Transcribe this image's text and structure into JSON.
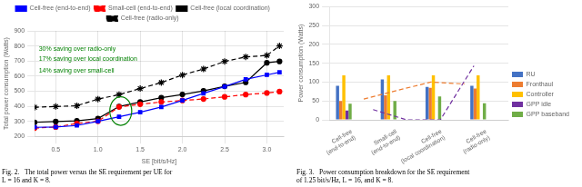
{
  "chart_data": [
    {
      "type": "line",
      "x": [
        0.25,
        0.5,
        0.75,
        1.0,
        1.25,
        1.5,
        1.75,
        2.0,
        2.25,
        2.5,
        2.75,
        3.0,
        3.15
      ],
      "series": [
        {
          "name": "Cell-free (end-to-end)",
          "color": "blue",
          "line_style": "solid",
          "marker": "square",
          "values": [
            260,
            262,
            272,
            300,
            330,
            360,
            395,
            438,
            485,
            530,
            578,
            608,
            625
          ]
        },
        {
          "name": "Small-cell (end-to-end)",
          "color": "red",
          "line_style": "dashed",
          "marker": "circle",
          "values": [
            255,
            262,
            285,
            300,
            395,
            413,
            428,
            438,
            448,
            462,
            477,
            488,
            497
          ]
        },
        {
          "name": "Cell-free (local coordination)",
          "color": "black",
          "line_style": "solid",
          "marker": "circle",
          "values": [
            293,
            298,
            303,
            318,
            398,
            428,
            456,
            478,
            502,
            532,
            558,
            688,
            697
          ]
        },
        {
          "name": "Cell-free (radio-only)",
          "color": "black",
          "line_style": "dashed",
          "marker": "star",
          "values": [
            393,
            398,
            403,
            447,
            477,
            517,
            557,
            607,
            647,
            697,
            727,
            737,
            800
          ]
        }
      ],
      "xlabel": "SE [bit/s/Hz]",
      "ylabel": "Total power consumption (Watts)",
      "xlim": [
        0.25,
        3.2
      ],
      "xticks": [
        0.5,
        {
          "value": 1.0,
          "label": "1.0"
        },
        1.5,
        {
          "value": 2.0,
          "label": "2.0"
        },
        2.5,
        {
          "value": 3.0,
          "label": "3.0"
        }
      ],
      "ylim": [
        200,
        900
      ],
      "yticks": [
        200,
        300,
        400,
        500,
        600,
        700,
        800,
        900
      ],
      "annotations": [
        {
          "text": "30% saving over radio-only",
          "x": 0.3,
          "y": 760,
          "color": "green"
        },
        {
          "text": "17% saving over local coordination",
          "x": 0.3,
          "y": 690,
          "color": "green"
        },
        {
          "text": "14% saving over small-cell",
          "x": 0.3,
          "y": 615,
          "color": "green"
        }
      ],
      "ellipse": {
        "center": [
          1.27,
          368
        ],
        "radii": [
          0.13,
          95
        ],
        "color": "green"
      },
      "grid": true,
      "legend": "top",
      "caption": "Fig. 2.   The total power versus the SE requirement per UE for\nL = 16 and K = 8."
    },
    {
      "type": "bar",
      "categories": [
        "Cell-free\n(end-to-end)",
        "Small-cell\n(end-to-end)",
        "Cell-free\n(local coordination)",
        "Cell-free\n(radio-only)"
      ],
      "series": [
        {
          "name": "RU",
          "color": "#4472C4",
          "values": [
            90,
            107,
            87,
            90
          ]
        },
        {
          "name": "Fronthaul",
          "color": "#ED7D31",
          "values": [
            50,
            65,
            85,
            83
          ]
        },
        {
          "name": "Controller",
          "color": "#FFC000",
          "values": [
            118,
            118,
            118,
            118
          ]
        },
        {
          "name": "GPP idle",
          "color": "#7030A0",
          "values": [
            25,
            0,
            0,
            0
          ]
        },
        {
          "name": "GPP baseband",
          "color": "#70AD47",
          "values": [
            43,
            50,
            62,
            44
          ]
        },
        {
          "type": "line",
          "color": "#ED7D31",
          "line_style": "dashed",
          "values": [
            55,
            78,
            100,
            95
          ]
        },
        {
          "type": "line",
          "color": "#7030A0",
          "line_style": "dashed",
          "values": [
            27,
            0,
            0,
            143
          ]
        }
      ],
      "ylabel": "Power consumption (Watts)",
      "ylim": [
        0,
        300
      ],
      "yticks": [
        0,
        50,
        100,
        150,
        200,
        250,
        300
      ],
      "grid": "y",
      "legend": "right",
      "caption": "Fig. 3.   Power consumption breakdown for the SE requirement\nof 1.25 bit/s/Hz, L = 16, and K = 8."
    }
  ]
}
